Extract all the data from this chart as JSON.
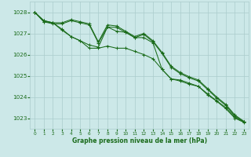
{
  "background_color": "#cce8e8",
  "grid_color": "#aacccc",
  "line_color": "#1a6b1a",
  "xlabel": "Graphe pression niveau de la mer (hPa)",
  "xlim": [
    -0.5,
    23.5
  ],
  "ylim": [
    1022.5,
    1028.5
  ],
  "yticks": [
    1023,
    1024,
    1025,
    1026,
    1027,
    1028
  ],
  "xticks": [
    0,
    1,
    2,
    3,
    4,
    5,
    6,
    7,
    8,
    9,
    10,
    11,
    12,
    13,
    14,
    15,
    16,
    17,
    18,
    19,
    20,
    21,
    22,
    23
  ],
  "series": [
    [
      1028.0,
      1027.6,
      1027.5,
      1027.2,
      1026.85,
      1026.65,
      1026.45,
      1026.35,
      1027.3,
      1027.1,
      1027.05,
      1026.8,
      1026.8,
      1026.55,
      1025.3,
      1024.85,
      1024.8,
      1024.65,
      1024.5,
      1024.15,
      1023.82,
      1023.5,
      1023.05,
      1022.82
    ],
    [
      1028.0,
      1027.6,
      1027.5,
      1027.15,
      1026.85,
      1026.65,
      1026.3,
      1026.3,
      1026.4,
      1026.3,
      1026.3,
      1026.15,
      1026.0,
      1025.8,
      1025.3,
      1024.85,
      1024.75,
      1024.6,
      1024.5,
      1024.1,
      1023.8,
      1023.45,
      1023.0,
      1022.8
    ],
    [
      1028.0,
      1027.55,
      1027.5,
      1027.5,
      1027.65,
      1027.55,
      1027.45,
      1026.6,
      1027.4,
      1027.35,
      1027.1,
      1026.85,
      1027.0,
      1026.65,
      1026.1,
      1025.45,
      1025.15,
      1024.95,
      1024.8,
      1024.4,
      1024.0,
      1023.65,
      1023.15,
      1022.85
    ],
    [
      1028.0,
      1027.55,
      1027.45,
      1027.45,
      1027.6,
      1027.5,
      1027.4,
      1026.55,
      1027.3,
      1027.28,
      1027.05,
      1026.8,
      1026.95,
      1026.6,
      1026.05,
      1025.4,
      1025.1,
      1024.9,
      1024.75,
      1024.35,
      1023.95,
      1023.6,
      1023.1,
      1022.82
    ]
  ],
  "xlabel_fontsize": 5.5,
  "xlabel_fontweight": "bold",
  "xtick_fontsize": 4.2,
  "ytick_fontsize": 5.2,
  "linewidth": 0.75,
  "markersize": 2.5,
  "marker": "+"
}
